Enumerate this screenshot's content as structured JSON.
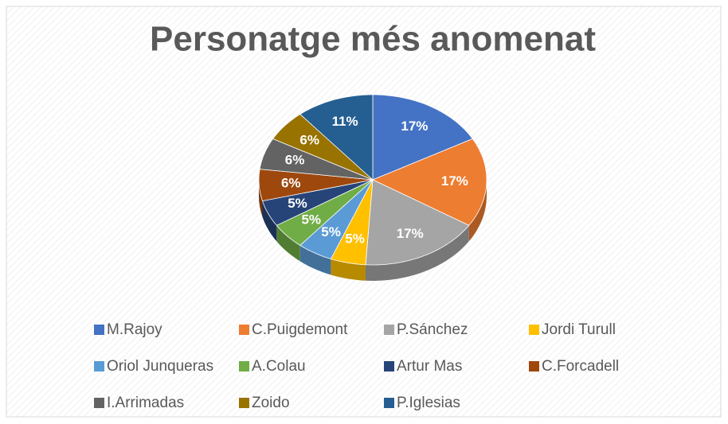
{
  "chart_data": {
    "type": "pie3d",
    "title": "Personatge més anomenat",
    "categories": [
      "M.Rajoy",
      "C.Puigdemont",
      "P.Sánchez",
      "Jordi Turull",
      "Oriol Junqueras",
      "A.Colau",
      "Artur Mas",
      "C.Forcadell",
      "I.Arrimadas",
      "Zoido",
      "P.Iglesias"
    ],
    "values": [
      17,
      17,
      17,
      5,
      5,
      5,
      5,
      6,
      6,
      6,
      11
    ],
    "value_labels": [
      "17%",
      "17%",
      "17%",
      "5%",
      "5%",
      "5%",
      "5%",
      "6%",
      "6%",
      "6%",
      "11%"
    ],
    "colors": [
      "#4472c4",
      "#ed7d31",
      "#a5a5a5",
      "#ffc000",
      "#5b9bd5",
      "#70ad47",
      "#264478",
      "#9e480e",
      "#636363",
      "#997300",
      "#255e91"
    ],
    "legend": "bottom"
  }
}
